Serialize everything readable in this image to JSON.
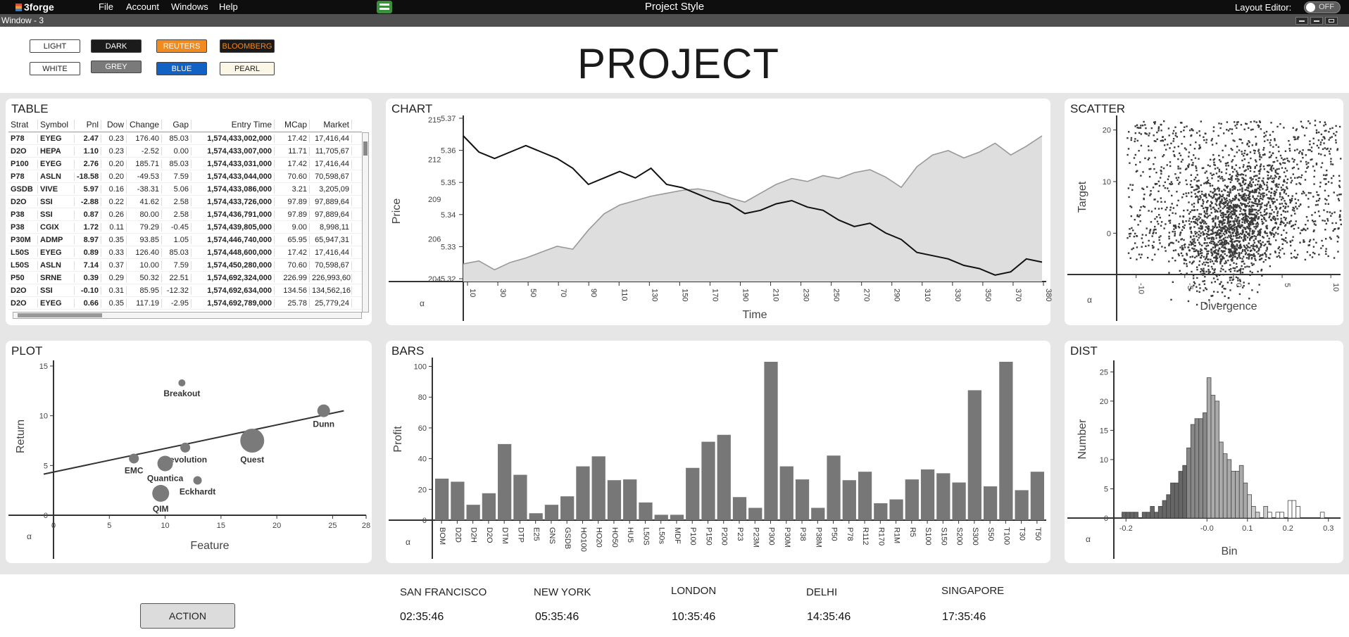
{
  "menubar": {
    "logo": "3forge",
    "file": "File",
    "account": "Account",
    "windows": "Windows",
    "help": "Help",
    "center_title": "Project Style",
    "layout_editor": "Layout Editor:",
    "toggle": "OFF"
  },
  "window": {
    "title": "Window - 3"
  },
  "themes": [
    {
      "label": "LIGHT",
      "bg": "#ffffff",
      "fg": "#222222"
    },
    {
      "label": "DARK",
      "bg": "#1b1b1b",
      "fg": "#ffffff"
    },
    {
      "label": "REUTERS",
      "bg": "#f28a1e",
      "fg": "#ffffff"
    },
    {
      "label": "BLOOMBERG",
      "bg": "#1a1a1a",
      "fg": "#f28a1e"
    },
    {
      "label": "WHITE",
      "bg": "#ffffff",
      "fg": "#222222"
    },
    {
      "label": "GREY",
      "bg": "#7a7a7a",
      "fg": "#ffffff"
    },
    {
      "label": "BLUE",
      "bg": "#1261c4",
      "fg": "#ffffff"
    },
    {
      "label": "PEARL",
      "bg": "#fbf6e6",
      "fg": "#222222"
    }
  ],
  "page_title": "PROJECT",
  "panels": {
    "table": "TABLE",
    "chart": "CHART",
    "scatter": "SCATTER",
    "plot": "PLOT",
    "bars": "BARS",
    "dist": "DIST"
  },
  "table": {
    "columns": [
      "Strat",
      "Symbol",
      "Pnl",
      "Dow",
      "Change",
      "Gap",
      "Entry Time",
      "MCap",
      "Market"
    ],
    "rows": [
      [
        "P78",
        "EYEG",
        "2.47",
        "0.23",
        "176.40",
        "85.03",
        "1,574,433,002,000",
        "17.42",
        "17,416,44"
      ],
      [
        "D2O",
        "HEPA",
        "1.10",
        "0.23",
        "-2.52",
        "0.00",
        "1,574,433,007,000",
        "11.71",
        "11,705,67"
      ],
      [
        "P100",
        "EYEG",
        "2.76",
        "0.20",
        "185.71",
        "85.03",
        "1,574,433,031,000",
        "17.42",
        "17,416,44"
      ],
      [
        "P78",
        "ASLN",
        "-18.58",
        "0.20",
        "-49.53",
        "7.59",
        "1,574,433,044,000",
        "70.60",
        "70,598,67"
      ],
      [
        "GSDB",
        "VIVE",
        "5.97",
        "0.16",
        "-38.31",
        "5.06",
        "1,574,433,086,000",
        "3.21",
        "3,205,09"
      ],
      [
        "D2O",
        "SSI",
        "-2.88",
        "0.22",
        "41.62",
        "2.58",
        "1,574,433,726,000",
        "97.89",
        "97,889,64"
      ],
      [
        "P38",
        "SSI",
        "0.87",
        "0.26",
        "80.00",
        "2.58",
        "1,574,436,791,000",
        "97.89",
        "97,889,64"
      ],
      [
        "P38",
        "CGIX",
        "1.72",
        "0.11",
        "79.29",
        "-0.45",
        "1,574,439,805,000",
        "9.00",
        "8,998,11"
      ],
      [
        "P30M",
        "ADMP",
        "8.97",
        "0.35",
        "93.85",
        "1.05",
        "1,574,446,740,000",
        "65.95",
        "65,947,31"
      ],
      [
        "L50S",
        "EYEG",
        "0.89",
        "0.33",
        "126.40",
        "85.03",
        "1,574,448,600,000",
        "17.42",
        "17,416,44"
      ],
      [
        "L50S",
        "ASLN",
        "7.14",
        "0.37",
        "10.00",
        "7.59",
        "1,574,450,280,000",
        "70.60",
        "70,598,67"
      ],
      [
        "P50",
        "SRNE",
        "0.39",
        "0.29",
        "50.32",
        "22.51",
        "1,574,692,324,000",
        "226.99",
        "226,993,60"
      ],
      [
        "D2O",
        "SSI",
        "-0.10",
        "0.31",
        "85.95",
        "-12.32",
        "1,574,692,634,000",
        "134.56",
        "134,562,16"
      ],
      [
        "D2O",
        "EYEG",
        "0.66",
        "0.35",
        "117.19",
        "-2.95",
        "1,574,692,789,000",
        "25.78",
        "25,779,24"
      ]
    ]
  },
  "chart_data": [
    {
      "type": "line",
      "title": "CHART",
      "xlabel": "Time",
      "ylabel": "Price",
      "corner_label": "α",
      "x_ticks": [
        "10",
        "30",
        "50",
        "70",
        "90",
        "110",
        "130",
        "150",
        "170",
        "190",
        "210",
        "230",
        "250",
        "270",
        "290",
        "310",
        "330",
        "350",
        "370",
        "380"
      ],
      "y_left_ticks": [
        "204",
        "206",
        "209",
        "212",
        "215"
      ],
      "y_right_ticks": [
        "5.32",
        "5.33",
        "5.34",
        "5.35",
        "5.36",
        "5.37"
      ],
      "xlim": [
        10,
        380
      ],
      "ylim_right": [
        5.32,
        5.37
      ],
      "ylim_left": [
        204,
        215
      ],
      "series": [
        {
          "axis": "right",
          "x": [
            10,
            20,
            30,
            40,
            50,
            60,
            70,
            80,
            90,
            100,
            110,
            120,
            130,
            140,
            150,
            160,
            170,
            180,
            190,
            200,
            210,
            220,
            230,
            240,
            250,
            260,
            270,
            280,
            290,
            300,
            310,
            320,
            330,
            340,
            350,
            360,
            370,
            380
          ],
          "values": [
            5.365,
            5.36,
            5.358,
            5.36,
            5.362,
            5.36,
            5.358,
            5.355,
            5.35,
            5.352,
            5.354,
            5.352,
            5.355,
            5.35,
            5.349,
            5.347,
            5.345,
            5.344,
            5.341,
            5.342,
            5.344,
            5.345,
            5.343,
            5.342,
            5.339,
            5.337,
            5.338,
            5.335,
            5.333,
            5.329,
            5.328,
            5.327,
            5.325,
            5.324,
            5.322,
            5.323,
            5.327,
            5.326
          ]
        },
        {
          "axis": "left",
          "fill": true,
          "x": [
            10,
            20,
            30,
            40,
            50,
            60,
            70,
            80,
            90,
            100,
            110,
            120,
            130,
            140,
            150,
            160,
            170,
            180,
            190,
            200,
            210,
            220,
            230,
            240,
            250,
            260,
            270,
            280,
            290,
            300,
            310,
            320,
            330,
            340,
            350,
            360,
            370,
            380
          ],
          "values": [
            205.2,
            205.4,
            204.8,
            205.3,
            205.6,
            206,
            206.4,
            206.2,
            207.5,
            208.6,
            209.2,
            209.5,
            209.8,
            210,
            210.2,
            210.3,
            210.1,
            209.7,
            209.4,
            210,
            210.6,
            211,
            210.8,
            211.2,
            211,
            211.4,
            211.6,
            211.1,
            210.4,
            211.8,
            212.6,
            212.9,
            212.4,
            212.8,
            213.4,
            212.6,
            213.2,
            213.9
          ]
        }
      ]
    },
    {
      "type": "scatter",
      "title": "SCATTER",
      "xlabel": "Divergence",
      "ylabel": "Target",
      "corner_label": "α",
      "x_ticks": [
        "-10",
        "-5",
        "0",
        "5",
        "10"
      ],
      "y_ticks": [
        "0",
        "10",
        "20"
      ],
      "xlim": [
        -12,
        11
      ],
      "ylim": [
        -8,
        22
      ]
    },
    {
      "type": "scatter",
      "title": "PLOT",
      "xlabel": "Feature",
      "ylabel": "Return",
      "corner_label": "α",
      "x_ticks": [
        "0",
        "5",
        "10",
        "15",
        "20",
        "25",
        "28"
      ],
      "y_ticks": [
        "0",
        "5",
        "10",
        "15"
      ],
      "xlim": [
        0,
        28
      ],
      "ylim": [
        0,
        15
      ],
      "points": [
        {
          "label": "Breakout",
          "x": 11.5,
          "y": 13.3,
          "size": 5
        },
        {
          "label": "Dunn",
          "x": 24.2,
          "y": 10.5,
          "size": 9
        },
        {
          "label": "EMC",
          "x": 7.2,
          "y": 5.7,
          "size": 7
        },
        {
          "label": "Revolution",
          "x": 11.8,
          "y": 6.8,
          "size": 7
        },
        {
          "label": "Quest",
          "x": 17.8,
          "y": 7.5,
          "size": 17
        },
        {
          "label": "Quantica",
          "x": 10,
          "y": 5.2,
          "size": 11
        },
        {
          "label": "Eckhardt",
          "x": 12.9,
          "y": 3.5,
          "size": 6
        },
        {
          "label": "QIM",
          "x": 9.6,
          "y": 2.2,
          "size": 12
        }
      ],
      "trend": {
        "x": [
          0,
          26
        ],
        "y": [
          4.2,
          10.5
        ]
      }
    },
    {
      "type": "bar",
      "title": "BARS",
      "xlabel": "",
      "ylabel": "Profit",
      "corner_label": "α",
      "y_ticks": [
        "0",
        "20",
        "40",
        "60",
        "80",
        "100"
      ],
      "ylim": [
        0,
        103
      ],
      "categories": [
        "BOM",
        "D2D",
        "D2H",
        "D2O",
        "DTM",
        "DTP",
        "E25",
        "GNS",
        "GSDB",
        "HO100",
        "HO20",
        "HO50",
        "HU5",
        "L50S",
        "L50s",
        "MDF",
        "P100",
        "P150",
        "P200",
        "P23",
        "P23M",
        "P300",
        "P30M",
        "P38",
        "P38M",
        "P50",
        "P78",
        "R112",
        "R170",
        "R1M",
        "R5",
        "S100",
        "S150",
        "S200",
        "S300",
        "S50",
        "T100",
        "T30",
        "T50"
      ],
      "values": [
        27,
        25,
        10,
        17.5,
        49.5,
        29.5,
        4.5,
        10,
        15.5,
        35,
        41.5,
        26,
        26.5,
        11.5,
        3.5,
        3.5,
        34,
        51,
        55.5,
        15,
        8,
        103,
        35,
        26.5,
        8,
        42,
        26,
        31.5,
        11,
        13.5,
        26.5,
        33,
        30.5,
        24.5,
        84.5,
        22,
        103,
        19.5,
        31.5
      ]
    },
    {
      "type": "bar",
      "title": "DIST",
      "xlabel": "Bin",
      "ylabel": "Number",
      "corner_label": "α",
      "x_ticks": [
        "-0.2",
        "-0.0",
        "0.1",
        "0.2",
        "0.3"
      ],
      "y_ticks": [
        "0",
        "5",
        "10",
        "15",
        "20",
        "25"
      ],
      "xlim": [
        -0.23,
        0.33
      ],
      "ylim": [
        0,
        26
      ],
      "bin_width": 0.01,
      "bins": [
        -0.21,
        -0.2,
        -0.19,
        -0.18,
        -0.17,
        -0.16,
        -0.15,
        -0.14,
        -0.13,
        -0.12,
        -0.11,
        -0.1,
        -0.09,
        -0.08,
        -0.07,
        -0.06,
        -0.05,
        -0.04,
        -0.03,
        -0.02,
        -0.01,
        0.0,
        0.01,
        0.02,
        0.03,
        0.04,
        0.05,
        0.06,
        0.07,
        0.08,
        0.09,
        0.1,
        0.11,
        0.12,
        0.13,
        0.14,
        0.15,
        0.16,
        0.17,
        0.18,
        0.19,
        0.2,
        0.21,
        0.22,
        0.23,
        0.24,
        0.25,
        0.26,
        0.27,
        0.28
      ],
      "values": [
        1,
        1,
        1,
        1,
        0,
        1,
        1,
        2,
        1,
        2,
        3,
        4,
        6,
        6,
        8,
        9,
        12,
        16,
        17,
        17,
        18,
        24,
        21,
        20,
        13,
        11,
        10,
        8,
        8,
        9,
        6,
        4,
        2,
        1,
        0,
        2,
        1,
        0,
        1,
        1,
        0,
        3,
        3,
        2,
        0,
        0,
        0,
        0,
        0,
        1
      ]
    }
  ],
  "footer": {
    "action": "ACTION",
    "cities": [
      {
        "name": "SAN FRANCISCO",
        "time": "02:35:46"
      },
      {
        "name": "NEW YORK",
        "time": "05:35:46"
      },
      {
        "name": "LONDON",
        "time": "10:35:46"
      },
      {
        "name": "DELHI",
        "time": "14:35:46"
      },
      {
        "name": "SINGAPORE",
        "time": "17:35:46"
      }
    ]
  }
}
